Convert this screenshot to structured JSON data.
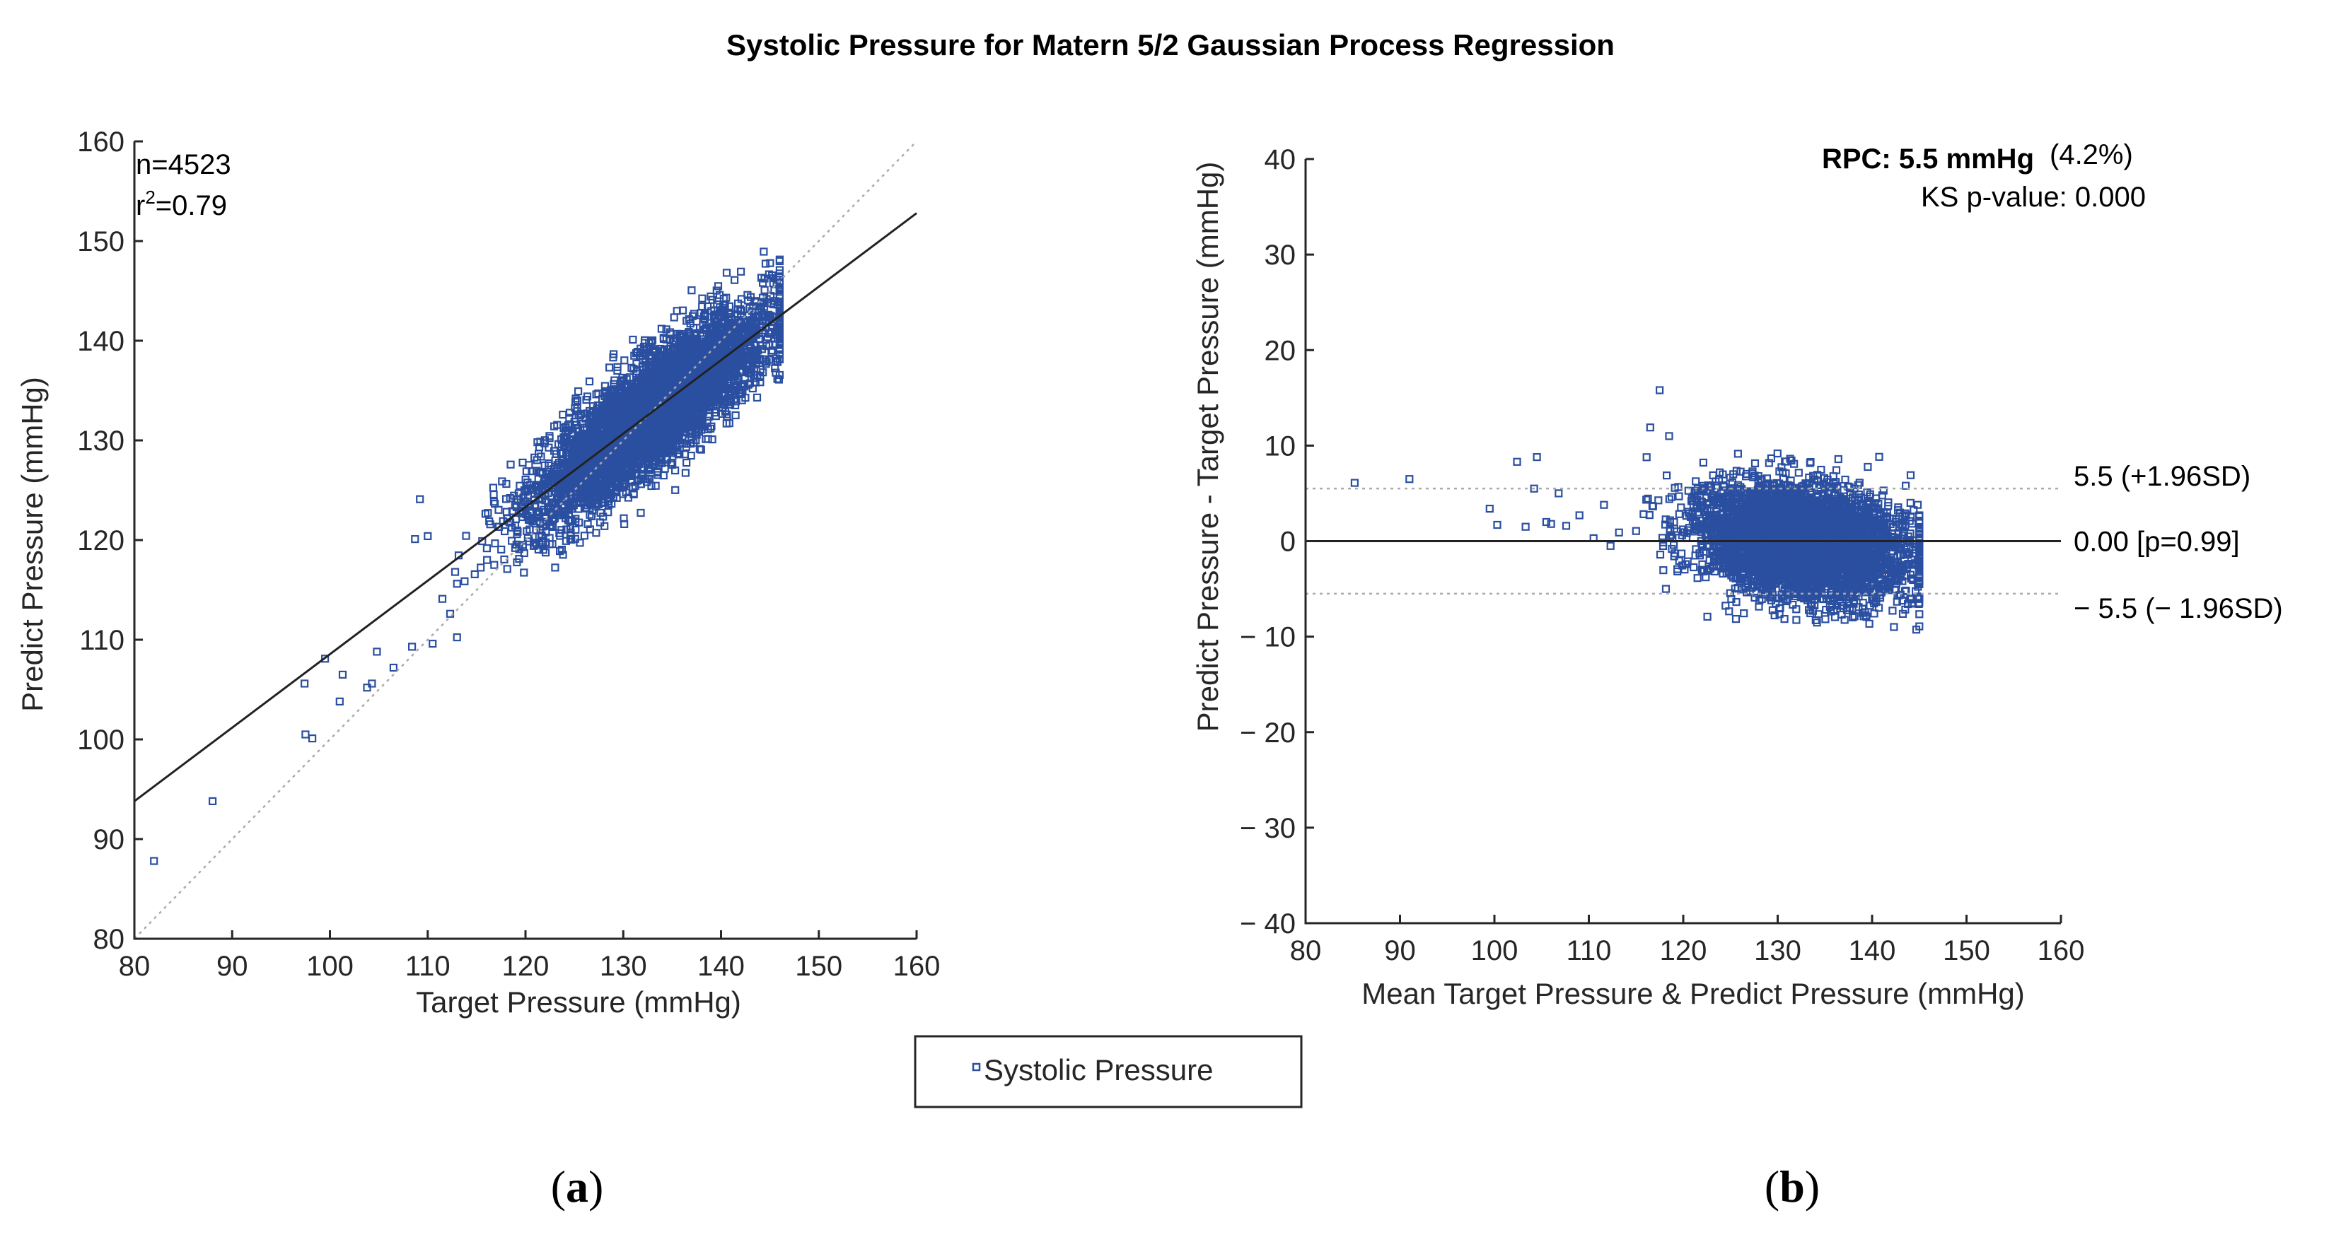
{
  "figure": {
    "title": "Systolic Pressure for Matern 5/2 Gaussian Process Regression",
    "legend": {
      "label": "Systolic Pressure",
      "marker_color": "#2b4fa0"
    },
    "captions": {
      "a": "a",
      "b": "b"
    }
  },
  "colors": {
    "points": "#2b4fa0",
    "fit_line": "#222222",
    "identity_line": "#aaaaaa",
    "axis": "#262626"
  },
  "chart_data": [
    {
      "type": "scatter",
      "id": "a",
      "xlabel": "Target Pressure (mmHg)",
      "ylabel": "Predict Pressure (mmHg)",
      "xlim": [
        80,
        160
      ],
      "ylim": [
        80,
        160
      ],
      "xticks": [
        80,
        90,
        100,
        110,
        120,
        130,
        140,
        150,
        160
      ],
      "yticks": [
        80,
        90,
        100,
        110,
        120,
        130,
        140,
        150,
        160
      ],
      "annotations": {
        "n": "n=4523",
        "r2_prefix": "r",
        "r2_exp": "2",
        "r2_value": "=0.79"
      },
      "n_points": 4523,
      "regression_line": {
        "x": [
          80,
          160
        ],
        "y": [
          93.8,
          152.8
        ]
      },
      "identity_line": {
        "x": [
          80,
          160
        ],
        "y": [
          80,
          160
        ]
      },
      "cluster": {
        "x_center": 133,
        "x_sd": 6,
        "x_range": [
          113,
          146
        ],
        "fit_slope": 0.737,
        "fit_intercept": 34.8,
        "residual_sd": 2.8
      },
      "outliers": [
        {
          "x": 82,
          "y": 87.8
        },
        {
          "x": 88,
          "y": 93.8
        },
        {
          "x": 97.5,
          "y": 100.5
        },
        {
          "x": 98.2,
          "y": 100.1
        },
        {
          "x": 97.4,
          "y": 105.6
        },
        {
          "x": 99.5,
          "y": 108.1
        },
        {
          "x": 101,
          "y": 103.8
        },
        {
          "x": 101.3,
          "y": 106.5
        },
        {
          "x": 103.8,
          "y": 105.2
        },
        {
          "x": 104.3,
          "y": 105.6
        },
        {
          "x": 104.8,
          "y": 108.8
        },
        {
          "x": 106.5,
          "y": 107.2
        },
        {
          "x": 108.4,
          "y": 109.3
        },
        {
          "x": 108.7,
          "y": 120.1
        },
        {
          "x": 109.2,
          "y": 124.1
        },
        {
          "x": 110,
          "y": 120.4
        },
        {
          "x": 110.5,
          "y": 109.6
        },
        {
          "x": 111.5,
          "y": 114.1
        },
        {
          "x": 112.3,
          "y": 112.6
        },
        {
          "x": 112.8,
          "y": 116.8
        }
      ]
    },
    {
      "type": "scatter",
      "id": "b",
      "xlabel": "Mean Target Pressure & Predict Pressure (mmHg)",
      "ylabel": "Predict Pressure - Target Pressure (mmHg)",
      "xlim": [
        80,
        160
      ],
      "ylim": [
        -40,
        40
      ],
      "xticks": [
        80,
        90,
        100,
        110,
        120,
        130,
        140,
        150,
        160
      ],
      "yticks": [
        40,
        30,
        20,
        10,
        0,
        -10,
        -20,
        -30,
        -40
      ],
      "ytick_labels": [
        "40",
        "30",
        "20",
        "10",
        "0",
        "− 10",
        "− 20",
        "− 30",
        "− 40"
      ],
      "annotations": {
        "rpc": "RPC: 5.5 mmHg",
        "rpc_pct": "(4.2%)",
        "ks": "KS p-value: 0.000"
      },
      "n_points": 4523,
      "mean_line": {
        "y": 0,
        "label": "0.00 [p=0.99]"
      },
      "upper_loa": {
        "y": 5.5,
        "label": "5.5 (+1.96SD)"
      },
      "lower_loa": {
        "y": -5.5,
        "label": "− 5.5 (− 1.96SD)"
      },
      "cluster": {
        "x_center": 132.5,
        "x_sd": 5.5,
        "x_range": [
          115,
          145
        ],
        "y_sd": 2.8
      },
      "outliers": [
        {
          "x": 85.2,
          "y": 6.1
        },
        {
          "x": 91,
          "y": 6.5
        },
        {
          "x": 99.5,
          "y": 3.4
        },
        {
          "x": 100.3,
          "y": 1.7
        },
        {
          "x": 102.4,
          "y": 8.3
        },
        {
          "x": 103.3,
          "y": 1.5
        },
        {
          "x": 104.2,
          "y": 5.5
        },
        {
          "x": 104.5,
          "y": 8.8
        },
        {
          "x": 105.5,
          "y": 2
        },
        {
          "x": 106,
          "y": 1.8
        },
        {
          "x": 106.8,
          "y": 5
        },
        {
          "x": 107.6,
          "y": 1.6
        },
        {
          "x": 109,
          "y": 2.7
        },
        {
          "x": 110.5,
          "y": 0.3
        },
        {
          "x": 111.6,
          "y": 3.8
        },
        {
          "x": 112.3,
          "y": -0.5
        },
        {
          "x": 113.2,
          "y": 0.9
        },
        {
          "x": 116.5,
          "y": 11.9
        },
        {
          "x": 117.5,
          "y": 15.8
        },
        {
          "x": 118.5,
          "y": 11
        }
      ]
    }
  ]
}
